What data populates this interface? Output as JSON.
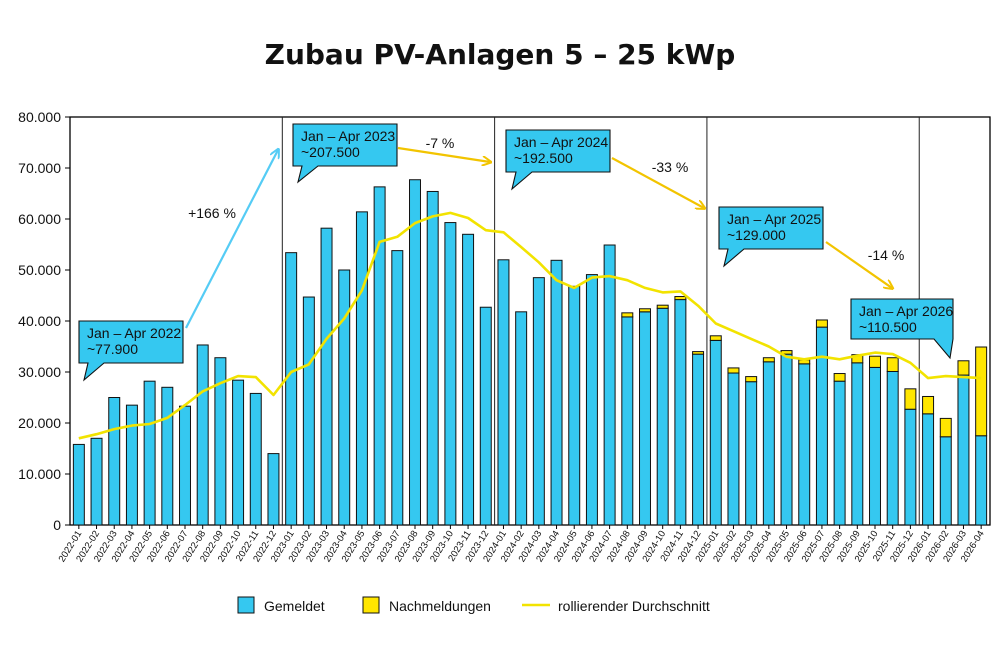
{
  "chart_data": {
    "type": "bar",
    "title": "Zubau PV-Anlagen 5 – 25 kWp",
    "stacked": true,
    "ylim": [
      0,
      80000
    ],
    "yticks": [
      "0",
      "10.000",
      "20.000",
      "30.000",
      "40.000",
      "50.000",
      "60.000",
      "70.000",
      "80.000"
    ],
    "ytick_values": [
      0,
      10000,
      20000,
      30000,
      40000,
      50000,
      60000,
      70000,
      80000
    ],
    "categories": [
      "2022-01",
      "2022-02",
      "2022-03",
      "2022-04",
      "2022-05",
      "2022-06",
      "2022-07",
      "2022-08",
      "2022-09",
      "2022-10",
      "2022-11",
      "2022-12",
      "2023-01",
      "2023-02",
      "2023-03",
      "2023-04",
      "2023-05",
      "2023-06",
      "2023-07",
      "2023-08",
      "2023-09",
      "2023-10",
      "2023-11",
      "2023-12",
      "2024-01",
      "2024-02",
      "2024-03",
      "2024-04",
      "2024-05",
      "2024-06",
      "2024-07",
      "2024-08",
      "2024-09",
      "2024-10",
      "2024-11",
      "2024-12",
      "2025-01",
      "2025-02",
      "2025-03",
      "2025-04",
      "2025-05",
      "2025-06",
      "2025-07",
      "2025-08",
      "2025-09",
      "2025-10",
      "2025-11",
      "2025-12",
      "2026-01",
      "2026-02",
      "2026-03",
      "2026-04"
    ],
    "series": [
      {
        "name": "Gemeldet",
        "color": "#35c8f0",
        "values": [
          15800,
          17000,
          25000,
          23500,
          28200,
          27000,
          23300,
          35300,
          32800,
          28400,
          25800,
          14000,
          53400,
          44700,
          58200,
          50000,
          61400,
          66300,
          53800,
          67700,
          65400,
          59300,
          57000,
          42700,
          52000,
          41800,
          48500,
          51900,
          46800,
          49100,
          54900,
          40800,
          41800,
          42500,
          44200,
          33500,
          36200,
          29800,
          28100,
          32000,
          33500,
          31600,
          38800,
          28200,
          31800,
          30900,
          30100,
          22700,
          21800,
          17300,
          29400,
          17500
        ]
      },
      {
        "name": "Nachmeldungen",
        "color": "#ffe600",
        "values": [
          0,
          0,
          0,
          0,
          0,
          0,
          0,
          0,
          0,
          0,
          0,
          0,
          0,
          0,
          0,
          0,
          0,
          0,
          0,
          0,
          0,
          0,
          0,
          0,
          0,
          0,
          0,
          0,
          0,
          0,
          0,
          800,
          600,
          600,
          600,
          500,
          900,
          1000,
          1000,
          800,
          700,
          800,
          1400,
          1500,
          1600,
          2200,
          2700,
          4000,
          3400,
          3600,
          2800,
          17400
        ]
      },
      {
        "name": "rollierender Durchschnitt",
        "color": "#f2e300",
        "kind": "line",
        "values": [
          17000,
          17800,
          18800,
          19500,
          19800,
          21000,
          23500,
          26200,
          27800,
          29200,
          29000,
          25500,
          30000,
          31500,
          36500,
          40500,
          46000,
          55500,
          56500,
          59200,
          60500,
          61200,
          60200,
          57800,
          57400,
          54500,
          51500,
          48000,
          46500,
          48500,
          48800,
          48000,
          46500,
          45600,
          45800,
          43000,
          39500,
          38000,
          36500,
          35000,
          33000,
          32500,
          33000,
          32500,
          33200,
          33800,
          33500,
          31800,
          28800,
          29200,
          29000,
          28800
        ]
      }
    ],
    "vertical_separators_after": [
      "2022-12",
      "2023-12",
      "2024-12",
      "2025-12"
    ],
    "annotations": [
      {
        "label": "Jan – Apr 2022",
        "value": "~77.900"
      },
      {
        "label": "Jan – Apr 2023",
        "value": "~207.500"
      },
      {
        "label": "Jan – Apr 2024",
        "value": "~192.500"
      },
      {
        "label": "Jan – Apr 2025",
        "value": "~129.000"
      },
      {
        "label": "Jan – Apr 2026",
        "value": "~110.500"
      }
    ],
    "changes": [
      "+166 %",
      "-7 %",
      "-33 %",
      "-14 %"
    ],
    "legend_position": "bottom"
  },
  "colors": {
    "callout_fill": "#35c8f0",
    "arrow_up": "#55ccf5",
    "arrow_down": "#f2c400"
  }
}
